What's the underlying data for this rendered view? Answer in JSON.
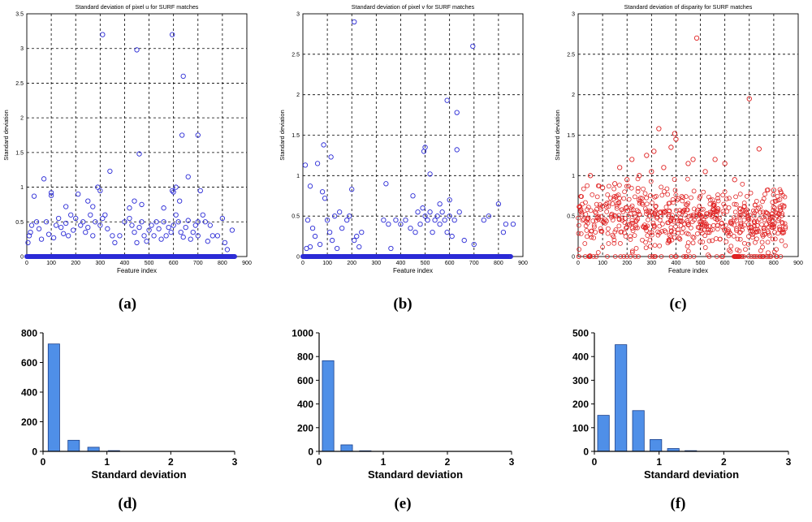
{
  "panel_labels": [
    "(a)",
    "(b)",
    "(c)",
    "(d)",
    "(e)",
    "(f)"
  ],
  "colors": {
    "blue_marker": "#2b2bd6",
    "red_marker": "#e02020",
    "bar_fill": "#4f8fe8",
    "bar_edge": "#1a3f8a",
    "grid": "#000000"
  },
  "chart_data": [
    {
      "id": "a",
      "type": "scatter",
      "title": "Standard deviation of pixel u for SURF matches",
      "xlabel": "Feature index",
      "ylabel": "Standard deviation",
      "xlim": [
        0,
        900
      ],
      "ylim": [
        0,
        3.5
      ],
      "xticks": [
        0,
        100,
        200,
        300,
        400,
        500,
        600,
        700,
        800,
        900
      ],
      "yticks": [
        0,
        0.5,
        1,
        1.5,
        2,
        2.5,
        3,
        3.5
      ],
      "grid": true,
      "marker": "open-circle",
      "color": "#2b2bd6",
      "zero_band": [
        0,
        850
      ],
      "points": [
        [
          310,
          3.2
        ],
        [
          450,
          2.98
        ],
        [
          595,
          3.2
        ],
        [
          640,
          2.6
        ],
        [
          460,
          1.48
        ],
        [
          635,
          1.75
        ],
        [
          700,
          1.75
        ],
        [
          660,
          1.15
        ],
        [
          340,
          1.23
        ],
        [
          70,
          1.12
        ],
        [
          100,
          0.92
        ],
        [
          100,
          0.88
        ],
        [
          210,
          0.9
        ],
        [
          300,
          0.95
        ],
        [
          290,
          1.0
        ],
        [
          610,
          1.0
        ],
        [
          595,
          0.95
        ],
        [
          600,
          0.93
        ],
        [
          710,
          0.95
        ],
        [
          30,
          0.87
        ],
        [
          40,
          0.5
        ],
        [
          20,
          0.45
        ],
        [
          10,
          0.3
        ],
        [
          5,
          0.2
        ],
        [
          15,
          0.35
        ],
        [
          50,
          0.4
        ],
        [
          60,
          0.25
        ],
        [
          80,
          0.5
        ],
        [
          90,
          0.32
        ],
        [
          110,
          0.27
        ],
        [
          120,
          0.45
        ],
        [
          130,
          0.55
        ],
        [
          140,
          0.42
        ],
        [
          150,
          0.33
        ],
        [
          160,
          0.48
        ],
        [
          170,
          0.3
        ],
        [
          180,
          0.6
        ],
        [
          190,
          0.38
        ],
        [
          200,
          0.55
        ],
        [
          220,
          0.45
        ],
        [
          230,
          0.5
        ],
        [
          240,
          0.35
        ],
        [
          250,
          0.42
        ],
        [
          260,
          0.6
        ],
        [
          270,
          0.3
        ],
        [
          280,
          0.5
        ],
        [
          300,
          0.45
        ],
        [
          310,
          0.55
        ],
        [
          320,
          0.6
        ],
        [
          330,
          0.4
        ],
        [
          350,
          0.3
        ],
        [
          360,
          0.2
        ],
        [
          380,
          0.3
        ],
        [
          400,
          0.5
        ],
        [
          420,
          0.7
        ],
        [
          430,
          0.45
        ],
        [
          440,
          0.35
        ],
        [
          450,
          0.2
        ],
        [
          460,
          0.42
        ],
        [
          470,
          0.5
        ],
        [
          480,
          0.3
        ],
        [
          490,
          0.22
        ],
        [
          500,
          0.38
        ],
        [
          510,
          0.45
        ],
        [
          520,
          0.3
        ],
        [
          530,
          0.5
        ],
        [
          540,
          0.4
        ],
        [
          550,
          0.25
        ],
        [
          560,
          0.5
        ],
        [
          570,
          0.3
        ],
        [
          580,
          0.42
        ],
        [
          590,
          0.35
        ],
        [
          600,
          0.45
        ],
        [
          610,
          0.6
        ],
        [
          620,
          0.5
        ],
        [
          630,
          0.35
        ],
        [
          640,
          0.28
        ],
        [
          650,
          0.42
        ],
        [
          660,
          0.52
        ],
        [
          670,
          0.25
        ],
        [
          680,
          0.35
        ],
        [
          690,
          0.45
        ],
        [
          700,
          0.3
        ],
        [
          720,
          0.6
        ],
        [
          740,
          0.22
        ],
        [
          750,
          0.45
        ],
        [
          760,
          0.3
        ],
        [
          780,
          0.3
        ],
        [
          800,
          0.55
        ],
        [
          810,
          0.2
        ],
        [
          820,
          0.1
        ],
        [
          840,
          0.38
        ],
        [
          250,
          0.8
        ],
        [
          270,
          0.72
        ],
        [
          160,
          0.72
        ],
        [
          440,
          0.8
        ],
        [
          470,
          0.75
        ],
        [
          560,
          0.7
        ],
        [
          625,
          0.8
        ],
        [
          420,
          0.55
        ],
        [
          700,
          0.5
        ],
        [
          730,
          0.5
        ]
      ]
    },
    {
      "id": "b",
      "type": "scatter",
      "title": "Standard deviation of pixel v for SURF matches",
      "xlabel": "Feature index",
      "ylabel": "Standard deviation",
      "xlim": [
        0,
        900
      ],
      "ylim": [
        0,
        3
      ],
      "xticks": [
        0,
        100,
        200,
        300,
        400,
        500,
        600,
        700,
        800,
        900
      ],
      "yticks": [
        0,
        0.5,
        1,
        1.5,
        2,
        2.5,
        3
      ],
      "grid": true,
      "marker": "open-circle",
      "color": "#2b2bd6",
      "zero_band": [
        0,
        850
      ],
      "points": [
        [
          210,
          2.9
        ],
        [
          695,
          2.6
        ],
        [
          590,
          1.93
        ],
        [
          630,
          1.78
        ],
        [
          85,
          1.38
        ],
        [
          500,
          1.35
        ],
        [
          495,
          1.3
        ],
        [
          630,
          1.32
        ],
        [
          115,
          1.23
        ],
        [
          60,
          1.15
        ],
        [
          10,
          1.13
        ],
        [
          520,
          1.02
        ],
        [
          340,
          0.9
        ],
        [
          30,
          0.87
        ],
        [
          80,
          0.8
        ],
        [
          200,
          0.83
        ],
        [
          450,
          0.75
        ],
        [
          600,
          0.7
        ],
        [
          560,
          0.65
        ],
        [
          490,
          0.6
        ],
        [
          90,
          0.72
        ],
        [
          130,
          0.5
        ],
        [
          150,
          0.55
        ],
        [
          20,
          0.45
        ],
        [
          40,
          0.35
        ],
        [
          50,
          0.25
        ],
        [
          70,
          0.15
        ],
        [
          100,
          0.45
        ],
        [
          110,
          0.3
        ],
        [
          120,
          0.2
        ],
        [
          140,
          0.1
        ],
        [
          160,
          0.35
        ],
        [
          180,
          0.45
        ],
        [
          190,
          0.5
        ],
        [
          220,
          0.25
        ],
        [
          240,
          0.3
        ],
        [
          330,
          0.45
        ],
        [
          350,
          0.4
        ],
        [
          360,
          0.1
        ],
        [
          380,
          0.45
        ],
        [
          400,
          0.4
        ],
        [
          420,
          0.45
        ],
        [
          440,
          0.35
        ],
        [
          460,
          0.3
        ],
        [
          470,
          0.55
        ],
        [
          480,
          0.4
        ],
        [
          500,
          0.5
        ],
        [
          510,
          0.45
        ],
        [
          520,
          0.55
        ],
        [
          530,
          0.3
        ],
        [
          540,
          0.45
        ],
        [
          550,
          0.5
        ],
        [
          560,
          0.4
        ],
        [
          570,
          0.55
        ],
        [
          580,
          0.45
        ],
        [
          590,
          0.3
        ],
        [
          600,
          0.5
        ],
        [
          610,
          0.25
        ],
        [
          620,
          0.45
        ],
        [
          640,
          0.55
        ],
        [
          660,
          0.2
        ],
        [
          700,
          0.15
        ],
        [
          740,
          0.45
        ],
        [
          760,
          0.5
        ],
        [
          800,
          0.65
        ],
        [
          820,
          0.3
        ],
        [
          830,
          0.4
        ],
        [
          15,
          0.1
        ],
        [
          30,
          0.12
        ],
        [
          210,
          0.2
        ],
        [
          230,
          0.12
        ],
        [
          860,
          0.4
        ]
      ]
    },
    {
      "id": "c",
      "type": "scatter",
      "title": "Standard deviation of disparity for SURF matches",
      "xlabel": "Feature index",
      "ylabel": "Standard deviation",
      "xlim": [
        0,
        900
      ],
      "ylim": [
        0,
        3
      ],
      "xticks": [
        0,
        100,
        200,
        300,
        400,
        500,
        600,
        700,
        800,
        900
      ],
      "yticks": [
        0,
        0.5,
        1,
        1.5,
        2,
        2.5,
        3
      ],
      "grid": true,
      "marker": "open-circle",
      "color": "#e02020",
      "dense_cloud": {
        "count": 700,
        "x_range": [
          0,
          850
        ],
        "center": 0.47,
        "spread": 0.35,
        "max_in_cloud": 1.6
      },
      "points": [
        [
          485,
          2.7
        ],
        [
          700,
          1.95
        ],
        [
          740,
          1.33
        ],
        [
          395,
          1.52
        ],
        [
          330,
          1.58
        ],
        [
          400,
          1.45
        ],
        [
          170,
          1.1
        ],
        [
          220,
          1.2
        ],
        [
          280,
          1.25
        ],
        [
          310,
          1.3
        ],
        [
          350,
          1.1
        ],
        [
          380,
          1.35
        ],
        [
          450,
          1.15
        ],
        [
          470,
          1.2
        ],
        [
          520,
          1.05
        ],
        [
          560,
          1.2
        ],
        [
          600,
          1.15
        ],
        [
          50,
          1.0
        ],
        [
          100,
          0.85
        ],
        [
          150,
          0.9
        ],
        [
          200,
          0.95
        ],
        [
          250,
          1.0
        ],
        [
          300,
          1.05
        ],
        [
          640,
          0.95
        ],
        [
          800,
          0.82
        ]
      ]
    },
    {
      "id": "d",
      "type": "bar",
      "xlabel": "Standard deviation",
      "ylabel": "",
      "xlim": [
        0,
        3
      ],
      "ylim": [
        0,
        800
      ],
      "xticks": [
        0,
        1,
        2,
        3
      ],
      "yticks": [
        0,
        200,
        400,
        600,
        800
      ],
      "bins": [
        0.17,
        0.48,
        0.79,
        1.11
      ],
      "values": [
        725,
        75,
        28,
        5
      ],
      "grid": false
    },
    {
      "id": "e",
      "type": "bar",
      "xlabel": "Standard deviation",
      "ylabel": "",
      "xlim": [
        0,
        3
      ],
      "ylim": [
        0,
        1000
      ],
      "xticks": [
        0,
        1,
        2,
        3
      ],
      "yticks": [
        0,
        200,
        400,
        600,
        800,
        1000
      ],
      "bins": [
        0.14,
        0.43,
        0.72
      ],
      "values": [
        765,
        55,
        5
      ],
      "grid": false
    },
    {
      "id": "f",
      "type": "bar",
      "xlabel": "Standard deviation",
      "ylabel": "",
      "xlim": [
        0,
        3
      ],
      "ylim": [
        0,
        500
      ],
      "xticks": [
        0,
        1,
        2,
        3
      ],
      "yticks": [
        0,
        100,
        200,
        300,
        400,
        500
      ],
      "bins": [
        0.14,
        0.41,
        0.68,
        0.95,
        1.22,
        1.49
      ],
      "values": [
        152,
        450,
        172,
        50,
        12,
        3
      ],
      "grid": false
    }
  ]
}
